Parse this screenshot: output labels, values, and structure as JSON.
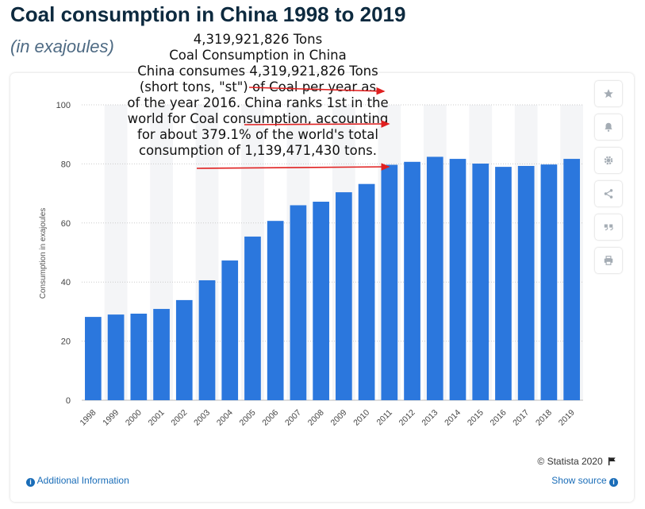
{
  "header": {
    "title": "Coal consumption in China 1998 to 2019",
    "subtitle": "(in exajoules)"
  },
  "chart_data": {
    "type": "bar",
    "categories": [
      "1998",
      "1999",
      "2000",
      "2001",
      "2002",
      "2003",
      "2004",
      "2005",
      "2006",
      "2007",
      "2008",
      "2009",
      "2010",
      "2011",
      "2012",
      "2013",
      "2014",
      "2015",
      "2016",
      "2017",
      "2018",
      "2019"
    ],
    "values": [
      28.2,
      29.0,
      29.3,
      30.9,
      33.9,
      40.6,
      47.3,
      55.4,
      60.7,
      66.0,
      67.2,
      70.4,
      73.2,
      79.7,
      80.7,
      82.4,
      81.7,
      80.1,
      79.0,
      79.3,
      79.8,
      81.7
    ],
    "ylabel": "Consumption in exajoules",
    "ylim": [
      0,
      100
    ],
    "yticks": [
      0,
      20,
      40,
      60,
      80,
      100
    ],
    "grid": true,
    "colors": {
      "bar": "#2b77dd",
      "grid": "#cccccc",
      "band": "#f4f5f7"
    }
  },
  "toolbar": {
    "icons": [
      "star-icon",
      "bell-icon",
      "gear-icon",
      "share-icon",
      "quote-icon",
      "print-icon"
    ]
  },
  "footer": {
    "credit": "© Statista 2020",
    "additional_info": "Additional Information",
    "show_source": "Show source"
  },
  "overlay": {
    "lines": [
      "4,319,921,826 Tons",
      "Coal Consumption in China",
      "China consumes 4,319,921,826 Tons",
      "(short tons, \"st\") of Coal per year as",
      "of the year 2016. China ranks 1st in the",
      "world for Coal consumption, accounting",
      "for about 379.1% of the world's total",
      "consumption of 1,139,471,430 tons."
    ],
    "arrow_color": "#e02020"
  }
}
